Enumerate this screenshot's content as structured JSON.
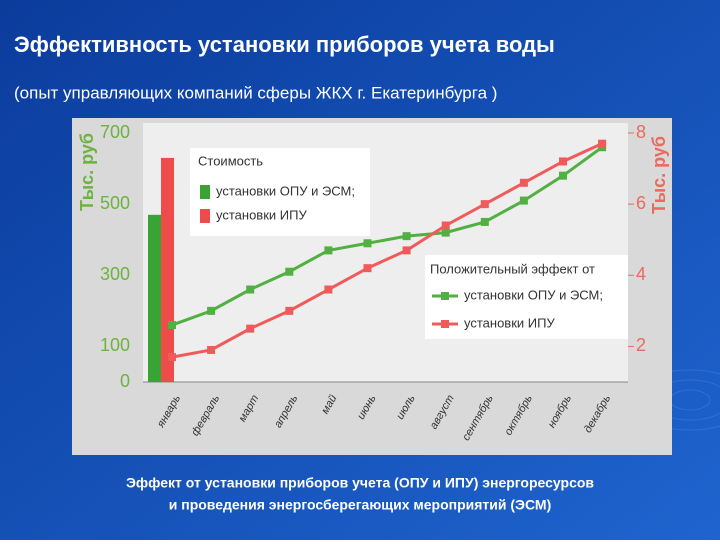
{
  "title": "Эффективность установки приборов учета воды",
  "subtitle": "(опыт  управляющих компаний сферы ЖКХ г. Екатеринбурга )",
  "caption": [
    "Эффект от установки приборов учета (ОПУ и ИПУ) энергоресурсов",
    "и проведения энергосберегающих мероприятий (ЭСМ)"
  ],
  "chart_data": {
    "type": "combo",
    "categories": [
      "январь",
      "февраль",
      "март",
      "апрель",
      "май",
      "июнь",
      "июль",
      "август",
      "сентябрь",
      "октябрь",
      "ноябрь",
      "декабрь"
    ],
    "ylabel": "Тыс. руб",
    "y2label": "Тыс. руб",
    "ylim": [
      0,
      700
    ],
    "yticks": [
      0,
      100,
      300,
      500,
      700
    ],
    "y2lim": [
      1,
      8
    ],
    "y2ticks": [
      2,
      4,
      6,
      8
    ],
    "ytick_color": "#6cb33f",
    "y2tick_color": "#ea6a5e",
    "grid": false,
    "bar_legend_title": "Стоимость",
    "line_legend_title": "Положительный эффект от",
    "bar_series": [
      {
        "name": "установки ОПУ и ЭСМ;",
        "color": "#3aa335",
        "values": [
          470,
          null,
          null,
          null,
          null,
          null,
          null,
          null,
          null,
          null,
          null,
          null
        ]
      },
      {
        "name": "установки ИПУ",
        "color": "#ee4b4b",
        "values": [
          630,
          null,
          null,
          null,
          null,
          null,
          null,
          null,
          null,
          null,
          null,
          null
        ]
      }
    ],
    "series": [
      {
        "name": "установки ОПУ и ЭСМ;",
        "color": "#52b043",
        "axis": "y2",
        "values": [
          2.6,
          3.0,
          3.6,
          4.1,
          4.7,
          4.9,
          5.1,
          5.2,
          5.5,
          6.1,
          6.8,
          7.6
        ]
      },
      {
        "name": "установки ИПУ",
        "color": "#f05a5a",
        "axis": "y2",
        "values": [
          1.7,
          1.9,
          2.5,
          3.0,
          3.6,
          4.2,
          4.7,
          5.4,
          6.0,
          6.6,
          7.2,
          7.7
        ]
      }
    ]
  }
}
